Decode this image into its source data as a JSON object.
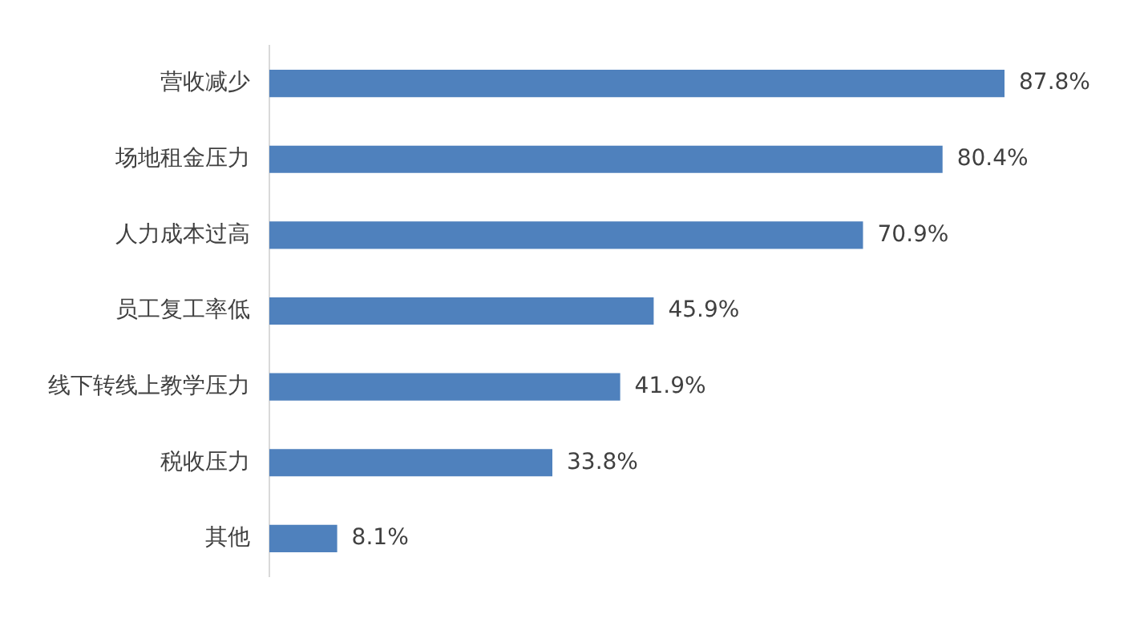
{
  "chart_data": {
    "type": "bar",
    "orientation": "horizontal",
    "categories": [
      "营收减少",
      "场地租金压力",
      "人力成本过高",
      "员工复工率低",
      "线下转线上教学压力",
      "税收压力",
      "其他"
    ],
    "values": [
      87.8,
      80.4,
      70.9,
      45.9,
      41.9,
      33.8,
      8.1
    ],
    "color": "#4f81bd",
    "value_labels": [
      "87.8%",
      "80.4%",
      "70.9%",
      "45.9%",
      "41.9%",
      "33.8%",
      "8.1%"
    ]
  }
}
